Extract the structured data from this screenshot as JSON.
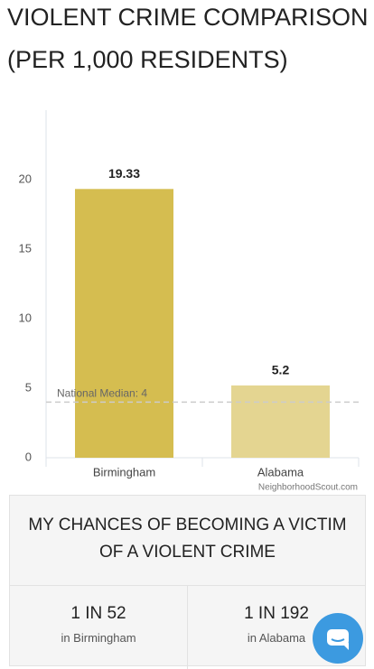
{
  "chart_data": {
    "type": "bar",
    "title": "VIOLENT CRIME COMPARISON",
    "subtitle": "(PER 1,000 RESIDENTS)",
    "categories": [
      "Birmingham",
      "Alabama"
    ],
    "values": [
      19.33,
      5.2
    ],
    "colors": [
      "#d5bd50",
      "#e4d591"
    ],
    "ylim": [
      0,
      25
    ],
    "yticks": [
      0,
      5,
      10,
      15,
      20
    ],
    "grid": false,
    "annotations": [
      {
        "text": "National Median: 4",
        "value": 4
      }
    ],
    "source": "NeighborhoodScout.com"
  },
  "chances": {
    "title": "MY CHANCES OF BECOMING A VICTIM OF A VIOLENT CRIME",
    "items": [
      {
        "odds": "1 IN 52",
        "place": "in Birmingham"
      },
      {
        "odds": "1 IN 192",
        "place": "in Alabama"
      }
    ]
  }
}
